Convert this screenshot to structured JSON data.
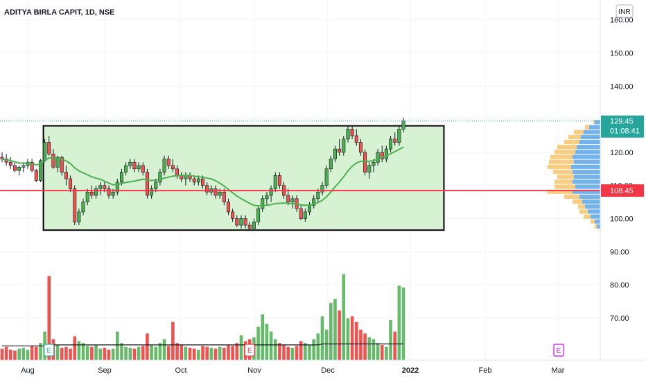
{
  "header": {
    "title": "ADITYA BIRLA CAPIT, 1D, NSE",
    "currency": "INR"
  },
  "chart_data": {
    "type": "candlestick",
    "symbol": "ADITYA BIRLA CAPIT",
    "interval": "1D",
    "exchange": "NSE",
    "currency": "INR",
    "ylim": [
      60,
      166
    ],
    "y_ticks": [
      "160.00",
      "150.00",
      "140.00",
      "130.00",
      "120.00",
      "110.00",
      "100.00",
      "90.00",
      "80.00",
      "70.00"
    ],
    "x_labels": [
      "Aug",
      "Sep",
      "Oct",
      "Nov",
      "Dec",
      "2022",
      "Feb",
      "Mar"
    ],
    "last_price": {
      "value": 129.45,
      "label": "129.45",
      "countdown": "01:08:41",
      "color": "#26a69a"
    },
    "horizontal_line": {
      "value": 108.45,
      "label": "108.45",
      "color": "#f23645"
    },
    "range_box": {
      "start_index": 10,
      "end_index": 103,
      "top": 128,
      "bottom": 96.5
    },
    "candles": [
      [
        118.5,
        120,
        117,
        118
      ],
      [
        118,
        119.5,
        116,
        117
      ],
      [
        117,
        118.5,
        115,
        116
      ],
      [
        116,
        117,
        114,
        114.5
      ],
      [
        114.5,
        116,
        113,
        115.5
      ],
      [
        115.5,
        117,
        114,
        116
      ],
      [
        116,
        118,
        115,
        117
      ],
      [
        117,
        118,
        114,
        114.5
      ],
      [
        114.5,
        115,
        111,
        111.5
      ],
      [
        111.5,
        118,
        111,
        117.5
      ],
      [
        117.5,
        124,
        117,
        123
      ],
      [
        123,
        125,
        119,
        119.5
      ],
      [
        119.5,
        121,
        115,
        115.5
      ],
      [
        115.5,
        119,
        114,
        118.5
      ],
      [
        118.5,
        119,
        113,
        114
      ],
      [
        114,
        116,
        110,
        112
      ],
      [
        112,
        113,
        108,
        109
      ],
      [
        109,
        110,
        98,
        99
      ],
      [
        99,
        103,
        98,
        102
      ],
      [
        102,
        106,
        101,
        105
      ],
      [
        105,
        109,
        104,
        108
      ],
      [
        108,
        110,
        106,
        107
      ],
      [
        107,
        110,
        106,
        109
      ],
      [
        109,
        111,
        107,
        110
      ],
      [
        110,
        111,
        108,
        109
      ],
      [
        109,
        110,
        106,
        107
      ],
      [
        107,
        109,
        106,
        108
      ],
      [
        108,
        112,
        107,
        111
      ],
      [
        111,
        115,
        110,
        114
      ],
      [
        114,
        117,
        113,
        116
      ],
      [
        116,
        118,
        115,
        117
      ],
      [
        117,
        118,
        114,
        115
      ],
      [
        115,
        117,
        114,
        116
      ],
      [
        116,
        117,
        113,
        114
      ],
      [
        114,
        115,
        106,
        107
      ],
      [
        107,
        110,
        106,
        109
      ],
      [
        109,
        112,
        108,
        111
      ],
      [
        111,
        115,
        110,
        114
      ],
      [
        114,
        119,
        113,
        118
      ],
      [
        118,
        119,
        115,
        116
      ],
      [
        116,
        118,
        114,
        115
      ],
      [
        115,
        116,
        112,
        113
      ],
      [
        113,
        114,
        111,
        112
      ],
      [
        112,
        114,
        110,
        113
      ],
      [
        113,
        114,
        111,
        112
      ],
      [
        112,
        113,
        110,
        111
      ],
      [
        111,
        113,
        110,
        112
      ],
      [
        112,
        113,
        109,
        110
      ],
      [
        110,
        111,
        107,
        108
      ],
      [
        108,
        110,
        107,
        109
      ],
      [
        109,
        110,
        106,
        107
      ],
      [
        107,
        109,
        106,
        108
      ],
      [
        108,
        109,
        104,
        105
      ],
      [
        105,
        106,
        101,
        102
      ],
      [
        102,
        103,
        99,
        100
      ],
      [
        100,
        101,
        97.5,
        98
      ],
      [
        98,
        101,
        97,
        100
      ],
      [
        100,
        101,
        97,
        98
      ],
      [
        98,
        99,
        96.5,
        97
      ],
      [
        97,
        100,
        96.5,
        99
      ],
      [
        99,
        104,
        98,
        103
      ],
      [
        103,
        107,
        102,
        106
      ],
      [
        106,
        108,
        104,
        107
      ],
      [
        107,
        110,
        105,
        109
      ],
      [
        109,
        114,
        108,
        113
      ],
      [
        113,
        114,
        109,
        110
      ],
      [
        110,
        111,
        106,
        107
      ],
      [
        107,
        109,
        104,
        105
      ],
      [
        105,
        107,
        103,
        106
      ],
      [
        106,
        107,
        102,
        103
      ],
      [
        103,
        104,
        99.5,
        100
      ],
      [
        100,
        103,
        99,
        102
      ],
      [
        102,
        105,
        101,
        104
      ],
      [
        104,
        107,
        103,
        106
      ],
      [
        106,
        109,
        105,
        108
      ],
      [
        108,
        111,
        107,
        110
      ],
      [
        110,
        116,
        109,
        115
      ],
      [
        115,
        119,
        114,
        118
      ],
      [
        118,
        122,
        117,
        121
      ],
      [
        121,
        124,
        119,
        120
      ],
      [
        120,
        125,
        119,
        124
      ],
      [
        124,
        128,
        123,
        127
      ],
      [
        127,
        128,
        124,
        125
      ],
      [
        125,
        127,
        122,
        123
      ],
      [
        123,
        124,
        119,
        120
      ],
      [
        120,
        121,
        113,
        114
      ],
      [
        114,
        117,
        112,
        116
      ],
      [
        116,
        118,
        114,
        117
      ],
      [
        117,
        121,
        116,
        120
      ],
      [
        120,
        122,
        117,
        118
      ],
      [
        118,
        122,
        117,
        121
      ],
      [
        121,
        125,
        120,
        124
      ],
      [
        124,
        126,
        122,
        123
      ],
      [
        123,
        128,
        122,
        127
      ],
      [
        127,
        130.5,
        126,
        129.45
      ]
    ],
    "moving_average": {
      "color": "#4caf50",
      "values": [
        117.9,
        117.8,
        117.5,
        117.1,
        116.8,
        116.7,
        116.8,
        116.6,
        116.2,
        116.5,
        117.6,
        118.3,
        118.3,
        118.2,
        117.9,
        117.4,
        116.6,
        115.3,
        114.4,
        113.8,
        113.2,
        112.6,
        112.2,
        111.9,
        111.3,
        110.7,
        110.2,
        110.3,
        110.6,
        110.9,
        111.1,
        111.3,
        111.6,
        111.9,
        111.6,
        111.5,
        111.6,
        111.8,
        112.2,
        112.5,
        112.8,
        112.9,
        113.0,
        113.1,
        113.0,
        112.8,
        112.6,
        112.5,
        112.2,
        112.0,
        111.4,
        110.7,
        109.8,
        108.8,
        107.8,
        106.8,
        106.0,
        105.3,
        104.6,
        104.0,
        103.8,
        103.9,
        104.0,
        104.2,
        104.5,
        104.6,
        104.7,
        104.6,
        104.5,
        104.4,
        104.1,
        104.0,
        104.1,
        104.4,
        104.8,
        105.5,
        106.6,
        108.0,
        109.6,
        111.0,
        112.6,
        114.4,
        115.8,
        116.8,
        117.3,
        117.2,
        117.3,
        117.5,
        118.0,
        118.4,
        118.9,
        119.6,
        120.2,
        120.9,
        121.6
      ]
    },
    "volume": {
      "scale_max": 100,
      "values": [
        12,
        14,
        11,
        10,
        12,
        13,
        11,
        15,
        14,
        18,
        30,
        88,
        22,
        16,
        13,
        14,
        12,
        25,
        20,
        18,
        15,
        14,
        16,
        12,
        13,
        11,
        12,
        30,
        18,
        14,
        13,
        12,
        14,
        15,
        28,
        16,
        14,
        18,
        22,
        15,
        40,
        18,
        16,
        14,
        13,
        12,
        11,
        15,
        14,
        13,
        12,
        14,
        13,
        16,
        15,
        18,
        26,
        20,
        22,
        24,
        35,
        48,
        38,
        30,
        22,
        18,
        16,
        14,
        13,
        15,
        20,
        18,
        16,
        22,
        28,
        46,
        32,
        60,
        64,
        52,
        90,
        44,
        46,
        40,
        32,
        28,
        24,
        22,
        18,
        16,
        14,
        42,
        30,
        78,
        76
      ],
      "average": [
        15,
        15,
        15,
        15,
        15,
        15,
        15,
        15,
        15,
        15,
        15,
        16,
        16,
        16,
        16,
        16,
        16,
        16,
        16,
        16,
        16,
        16,
        16,
        16,
        16,
        16,
        16,
        16,
        16,
        16,
        16,
        16,
        16,
        16,
        16,
        16,
        16,
        16,
        16,
        16,
        16,
        16,
        16,
        16,
        16,
        16,
        16,
        16,
        16,
        16,
        16,
        16,
        16,
        16,
        16,
        16,
        16,
        16,
        16,
        16,
        16,
        16,
        16,
        16,
        16,
        16,
        16,
        16,
        16,
        16,
        16,
        16,
        16,
        16,
        16,
        17,
        17,
        17,
        17,
        17,
        17,
        17,
        17,
        17,
        17,
        17,
        17,
        17,
        17,
        17,
        17,
        17,
        17,
        17,
        17
      ]
    },
    "volume_profile": {
      "bin_size": 1.5,
      "bins": [
        {
          "price": 97.5,
          "up": 3,
          "down": 5
        },
        {
          "price": 99,
          "up": 6,
          "down": 8
        },
        {
          "price": 100.5,
          "up": 10,
          "down": 14
        },
        {
          "price": 102,
          "up": 12,
          "down": 18
        },
        {
          "price": 103.5,
          "up": 10,
          "down": 22
        },
        {
          "price": 105,
          "up": 14,
          "down": 26
        },
        {
          "price": 106.5,
          "up": 22,
          "down": 30
        },
        {
          "price": 108,
          "up": 36,
          "down": 40
        },
        {
          "price": 109.5,
          "up": 30,
          "down": 36
        },
        {
          "price": 111,
          "up": 26,
          "down": 40
        },
        {
          "price": 112.5,
          "up": 24,
          "down": 38
        },
        {
          "price": 114,
          "up": 28,
          "down": 40
        },
        {
          "price": 115.5,
          "up": 34,
          "down": 42
        },
        {
          "price": 117,
          "up": 36,
          "down": 38
        },
        {
          "price": 118.5,
          "up": 32,
          "down": 40
        },
        {
          "price": 120,
          "up": 30,
          "down": 36
        },
        {
          "price": 121.5,
          "up": 28,
          "down": 34
        },
        {
          "price": 123,
          "up": 22,
          "down": 30
        },
        {
          "price": 124.5,
          "up": 18,
          "down": 28
        },
        {
          "price": 126,
          "up": 14,
          "down": 24
        },
        {
          "price": 127.5,
          "up": 6,
          "down": 16
        },
        {
          "price": 129,
          "up": 2,
          "down": 8
        }
      ],
      "up_color": "#f7c873",
      "down_color": "#5aa4e6"
    },
    "event_markers": [
      {
        "index": 11,
        "label": "E",
        "color": "#26a69a"
      },
      {
        "index": 58,
        "label": "E",
        "color": "#f23645"
      },
      {
        "date_position": "Mar",
        "label": "E",
        "color": "#d500f9"
      }
    ],
    "colors": {
      "up": "#4caf50",
      "down": "#f44336",
      "candle_up": "#26a69a",
      "candle_down": "#ef5350",
      "box_fill": "#d7f2d3",
      "box_border": "#000000"
    }
  }
}
